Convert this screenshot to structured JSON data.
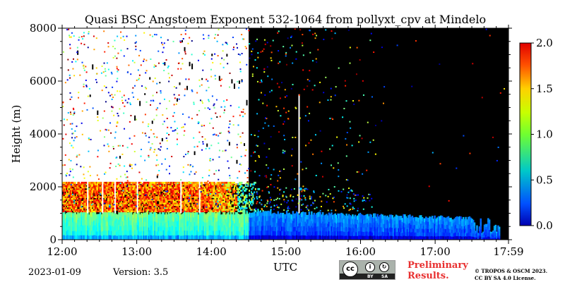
{
  "chart_data": {
    "type": "heatmap",
    "title": "Quasi BSC Angstoem Exponent 532-1064 from pollyxt_cpv at Mindelo",
    "xlabel": "UTC",
    "ylabel": "Height (m)",
    "x_range": [
      "12:00",
      "17:59"
    ],
    "ylim": [
      0,
      8000
    ],
    "x_ticks": [
      "12:00",
      "13:00",
      "14:00",
      "15:00",
      "16:00",
      "17:00",
      "17:59"
    ],
    "y_ticks": [
      "0",
      "2000",
      "4000",
      "6000",
      "8000"
    ],
    "colorbar": {
      "range": [
        0.0,
        2.0
      ],
      "ticks": [
        "0.0",
        "0.5",
        "1.0",
        "1.5",
        "2.0"
      ],
      "colormap": "jet"
    },
    "background_color": "#000000",
    "no_data_color": "#ffffff",
    "layers": [
      {
        "from": "12:00",
        "to": "14:30",
        "bottom": 0,
        "top": 1000,
        "typical_value": 0.7
      },
      {
        "from": "14:30",
        "to": "17:50",
        "bottom": 0,
        "top": 1000,
        "typical_value": 0.3
      },
      {
        "from": "12:00",
        "to": "14:30",
        "bottom": 1000,
        "top": 2100,
        "typical_value": 1.7
      },
      {
        "from": "12:00",
        "to": "14:30",
        "bottom": 2100,
        "top": 8000,
        "typical_value": "white/no data with scattered noise"
      },
      {
        "from": "14:30",
        "to": "17:59",
        "bottom": 1000,
        "top": 8000,
        "typical_value": "black background with sparse noise"
      }
    ]
  },
  "footer": {
    "date": "2023-01-09",
    "version_prefix": "Version:",
    "version": "3.5",
    "preliminary_line1": "Preliminary",
    "preliminary_line2": "Results.",
    "license_cc": "cc",
    "license_by": "BY",
    "license_sa": "SA",
    "copyright_line1": "© TROPOS & OSCM 2023.",
    "copyright_line2": "CC BY SA 4.0 License."
  }
}
